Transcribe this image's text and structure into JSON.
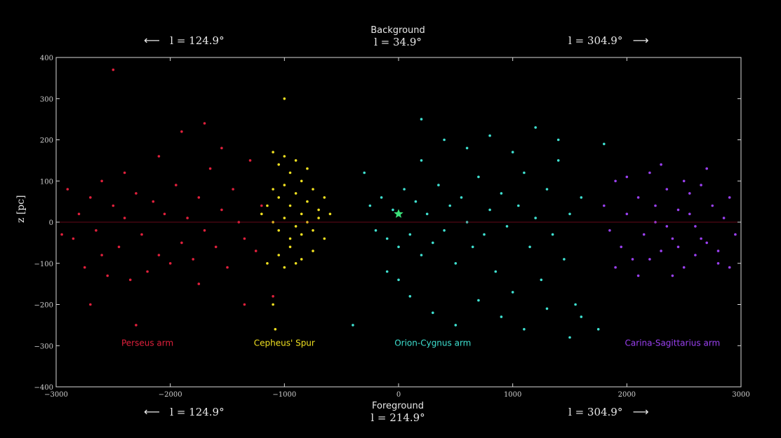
{
  "header": {
    "top_center_label": "Background",
    "top_center_value": "l = 34.9°",
    "top_left_value": "l = 124.9°",
    "top_right_value": "l = 304.9°",
    "bottom_center_label": "Foreground",
    "bottom_center_value": "l = 214.9°",
    "bottom_left_value": "l = 124.9°",
    "bottom_right_value": "l = 304.9°",
    "left_arrow": "⟵",
    "right_arrow": "⟶"
  },
  "chart_data": {
    "type": "scatter",
    "title": "",
    "xlabel": "",
    "ylabel": "z [pc]",
    "xlim": [
      -3000,
      3000
    ],
    "ylim": [
      -400,
      400
    ],
    "xticks": [
      -3000,
      -2000,
      -1000,
      0,
      1000,
      2000,
      3000
    ],
    "yticks": [
      -400,
      -300,
      -200,
      -100,
      0,
      100,
      200,
      300,
      400
    ],
    "grid": false,
    "background": "#000000",
    "sun_marker": {
      "x": 0,
      "y": 20,
      "color": "#3be07a",
      "icon": "star-icon"
    },
    "series": [
      {
        "name": "Perseus arm",
        "color": "#e0203c",
        "label_x": -2200,
        "label_y": -300,
        "points": [
          [
            -2900,
            80
          ],
          [
            -2850,
            -40
          ],
          [
            -2800,
            20
          ],
          [
            -2750,
            -110
          ],
          [
            -2700,
            60
          ],
          [
            -2650,
            -20
          ],
          [
            -2600,
            100
          ],
          [
            -2550,
            -130
          ],
          [
            -2500,
            40
          ],
          [
            -2450,
            -60
          ],
          [
            -2400,
            10
          ],
          [
            -2350,
            -140
          ],
          [
            -2300,
            70
          ],
          [
            -2250,
            -30
          ],
          [
            -2200,
            -120
          ],
          [
            -2150,
            50
          ],
          [
            -2100,
            -80
          ],
          [
            -2050,
            20
          ],
          [
            -2000,
            -100
          ],
          [
            -1950,
            90
          ],
          [
            -1900,
            -50
          ],
          [
            -1850,
            10
          ],
          [
            -1800,
            -90
          ],
          [
            -1750,
            60
          ],
          [
            -1700,
            -20
          ],
          [
            -1650,
            130
          ],
          [
            -1600,
            -60
          ],
          [
            -1550,
            30
          ],
          [
            -1500,
            -110
          ],
          [
            -1450,
            80
          ],
          [
            -1400,
            0
          ],
          [
            -1350,
            -40
          ],
          [
            -1300,
            150
          ],
          [
            -1250,
            -70
          ],
          [
            -1200,
            40
          ],
          [
            -2500,
            370
          ],
          [
            -2300,
            -250
          ],
          [
            -1100,
            -180
          ],
          [
            -1900,
            220
          ],
          [
            -2700,
            -200
          ],
          [
            -1700,
            240
          ],
          [
            -2950,
            -30
          ],
          [
            -2600,
            -80
          ],
          [
            -2400,
            120
          ],
          [
            -2100,
            160
          ],
          [
            -1750,
            -150
          ],
          [
            -1550,
            180
          ],
          [
            -1350,
            -200
          ]
        ]
      },
      {
        "name": "Cepheus' Spur",
        "color": "#f0e020",
        "label_x": -1000,
        "label_y": -300,
        "points": [
          [
            -1100,
            170
          ],
          [
            -1050,
            140
          ],
          [
            -1000,
            160
          ],
          [
            -950,
            120
          ],
          [
            -900,
            150
          ],
          [
            -850,
            100
          ],
          [
            -800,
            130
          ],
          [
            -1100,
            80
          ],
          [
            -1050,
            60
          ],
          [
            -1000,
            90
          ],
          [
            -950,
            40
          ],
          [
            -900,
            70
          ],
          [
            -850,
            20
          ],
          [
            -800,
            50
          ],
          [
            -750,
            80
          ],
          [
            -700,
            30
          ],
          [
            -1100,
            0
          ],
          [
            -1050,
            -20
          ],
          [
            -1000,
            10
          ],
          [
            -950,
            -40
          ],
          [
            -900,
            -10
          ],
          [
            -850,
            -30
          ],
          [
            -800,
            0
          ],
          [
            -750,
            -20
          ],
          [
            -700,
            10
          ],
          [
            -650,
            -40
          ],
          [
            -1050,
            -80
          ],
          [
            -950,
            -60
          ],
          [
            -850,
            -90
          ],
          [
            -750,
            -70
          ],
          [
            -1150,
            40
          ],
          [
            -1200,
            20
          ],
          [
            -650,
            60
          ],
          [
            -600,
            20
          ],
          [
            -1000,
            -110
          ],
          [
            -900,
            -100
          ],
          [
            -1100,
            -200
          ],
          [
            -1000,
            300
          ],
          [
            -1150,
            -100
          ],
          [
            -1080,
            -260
          ]
        ]
      },
      {
        "name": "Orion-Cygnus arm",
        "color": "#3ee0d0",
        "label_x": 300,
        "label_y": -300,
        "points": [
          [
            -300,
            120
          ],
          [
            -250,
            40
          ],
          [
            -200,
            -20
          ],
          [
            -150,
            60
          ],
          [
            -100,
            -40
          ],
          [
            -50,
            30
          ],
          [
            0,
            -60
          ],
          [
            50,
            80
          ],
          [
            100,
            -30
          ],
          [
            150,
            50
          ],
          [
            200,
            -80
          ],
          [
            250,
            20
          ],
          [
            300,
            -50
          ],
          [
            350,
            90
          ],
          [
            400,
            -20
          ],
          [
            450,
            40
          ],
          [
            500,
            -100
          ],
          [
            550,
            60
          ],
          [
            600,
            0
          ],
          [
            650,
            -60
          ],
          [
            700,
            110
          ],
          [
            750,
            -30
          ],
          [
            800,
            30
          ],
          [
            850,
            -120
          ],
          [
            900,
            70
          ],
          [
            950,
            -10
          ],
          [
            1000,
            -170
          ],
          [
            1050,
            40
          ],
          [
            1100,
            120
          ],
          [
            1150,
            -60
          ],
          [
            1200,
            10
          ],
          [
            1250,
            -140
          ],
          [
            1300,
            80
          ],
          [
            1350,
            -30
          ],
          [
            1400,
            150
          ],
          [
            1450,
            -90
          ],
          [
            1500,
            20
          ],
          [
            1550,
            -200
          ],
          [
            1600,
            60
          ],
          [
            -100,
            -120
          ],
          [
            0,
            -140
          ],
          [
            100,
            -180
          ],
          [
            200,
            150
          ],
          [
            300,
            -220
          ],
          [
            400,
            200
          ],
          [
            500,
            -250
          ],
          [
            600,
            180
          ],
          [
            700,
            -190
          ],
          [
            800,
            210
          ],
          [
            900,
            -230
          ],
          [
            1000,
            170
          ],
          [
            1100,
            -260
          ],
          [
            1200,
            230
          ],
          [
            1300,
            -210
          ],
          [
            1400,
            200
          ],
          [
            1500,
            -280
          ],
          [
            200,
            250
          ],
          [
            -400,
            -250
          ],
          [
            1600,
            -230
          ],
          [
            1750,
            -260
          ],
          [
            1800,
            190
          ]
        ]
      },
      {
        "name": "Carina-Sagittarius arm",
        "color": "#9a40f0",
        "label_x": 2400,
        "label_y": -300,
        "points": [
          [
            1800,
            40
          ],
          [
            1850,
            -20
          ],
          [
            1900,
            100
          ],
          [
            1950,
            -60
          ],
          [
            2000,
            20
          ],
          [
            2050,
            -90
          ],
          [
            2100,
            60
          ],
          [
            2150,
            -30
          ],
          [
            2200,
            120
          ],
          [
            2250,
            0
          ],
          [
            2300,
            -70
          ],
          [
            2350,
            80
          ],
          [
            2400,
            -40
          ],
          [
            2450,
            30
          ],
          [
            2500,
            -110
          ],
          [
            2550,
            70
          ],
          [
            2600,
            -10
          ],
          [
            2650,
            90
          ],
          [
            2700,
            -50
          ],
          [
            2750,
            40
          ],
          [
            2800,
            -100
          ],
          [
            2850,
            10
          ],
          [
            2900,
            60
          ],
          [
            2950,
            -30
          ],
          [
            1900,
            -110
          ],
          [
            2000,
            110
          ],
          [
            2100,
            -130
          ],
          [
            2200,
            -90
          ],
          [
            2300,
            140
          ],
          [
            2400,
            -130
          ],
          [
            2500,
            100
          ],
          [
            2600,
            -80
          ],
          [
            2700,
            130
          ],
          [
            2800,
            -70
          ],
          [
            2900,
            -110
          ],
          [
            2250,
            40
          ],
          [
            2350,
            -10
          ],
          [
            2450,
            -60
          ],
          [
            2550,
            20
          ],
          [
            2650,
            -40
          ]
        ]
      }
    ]
  }
}
